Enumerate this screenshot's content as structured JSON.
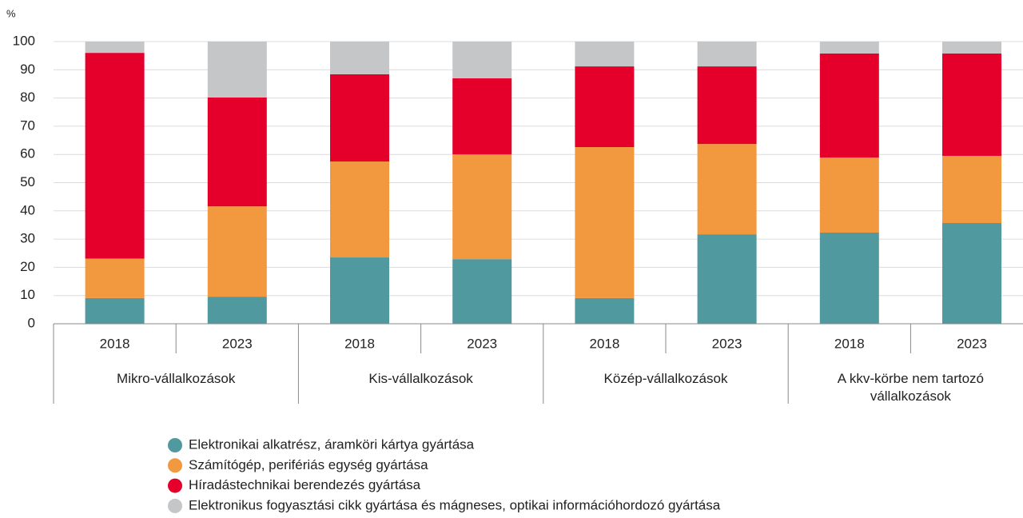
{
  "chart_data": {
    "type": "stacked_bar",
    "y_label": "%",
    "ylim": [
      0,
      100
    ],
    "yticks": [
      0,
      10,
      20,
      30,
      40,
      50,
      60,
      70,
      80,
      90,
      100
    ],
    "grid": true,
    "legend": "bottom",
    "groups": [
      {
        "name": "Mikro-vállalkozások",
        "categories": [
          "2018",
          "2023"
        ]
      },
      {
        "name": "Kis-vállalkozások",
        "categories": [
          "2018",
          "2023"
        ]
      },
      {
        "name": "Közép-vállalkozások",
        "categories": [
          "2018",
          "2023"
        ]
      },
      {
        "name": "A kkv-körbe nem tartozó vállalkozások",
        "categories": [
          "2018",
          "2023"
        ]
      }
    ],
    "series": [
      {
        "name": "Elektronikai alkatrész, áramköri kártya gyártása",
        "color": "#50999e",
        "values": [
          9.1,
          9.6,
          23.5,
          22.9,
          9.1,
          31.7,
          32.3,
          35.7
        ]
      },
      {
        "name": "Számítógép, perifériás egység gyártása",
        "color": "#f2983f",
        "values": [
          14,
          32,
          34,
          37.1,
          53.5,
          32,
          26.6,
          23.8
        ]
      },
      {
        "name": "Híradástechnikai berendezés gyártása",
        "color": "#e4002b",
        "values": [
          72.9,
          38.6,
          30.9,
          27,
          28.6,
          27.5,
          36.9,
          36.3
        ]
      },
      {
        "name": "Elektronikus fogyasztási cikk gyártása és mágneses, optikai információhordozó gyártása",
        "color": "#c5c6c8",
        "values": [
          4,
          19.8,
          11.6,
          13,
          8.8,
          8.8,
          4.2,
          4.2
        ]
      }
    ]
  }
}
